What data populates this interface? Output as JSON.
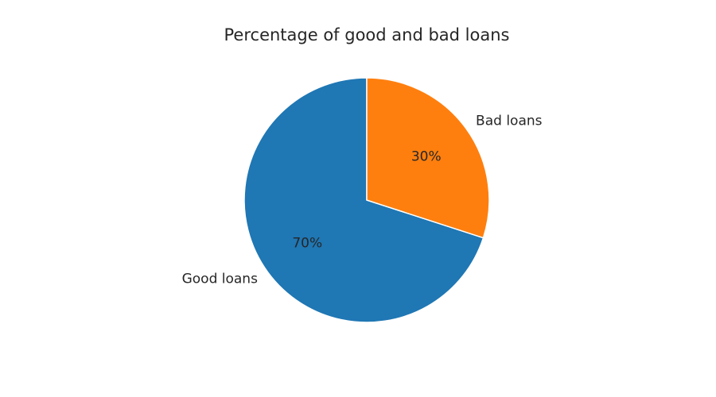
{
  "chart_data": {
    "type": "pie",
    "title": "Percentage of good and bad loans",
    "categories": [
      "Good loans",
      "Bad loans"
    ],
    "values": [
      70,
      30
    ],
    "percent_labels": [
      "70%",
      "30%"
    ],
    "colors": [
      "#1f77b4",
      "#ff7f0e"
    ],
    "start_angle_deg": 90,
    "direction": "counterclockwise",
    "legend": "none"
  }
}
